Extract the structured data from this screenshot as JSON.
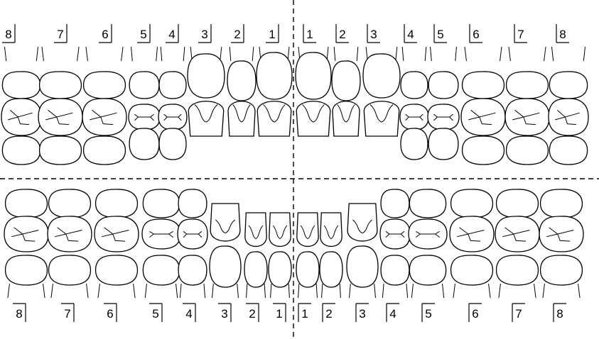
{
  "upper_right_labels": [
    "8",
    "7",
    "6",
    "5",
    "4",
    "3",
    "2",
    "1"
  ],
  "upper_left_labels": [
    "1",
    "2",
    "3",
    "4",
    "5",
    "6",
    "7",
    "8"
  ],
  "lower_right_labels": [
    "8",
    "7",
    "6",
    "5",
    "4",
    "3",
    "2",
    "1"
  ],
  "lower_left_labels": [
    "1",
    "2",
    "3",
    "4",
    "5",
    "6",
    "7",
    "8"
  ]
}
